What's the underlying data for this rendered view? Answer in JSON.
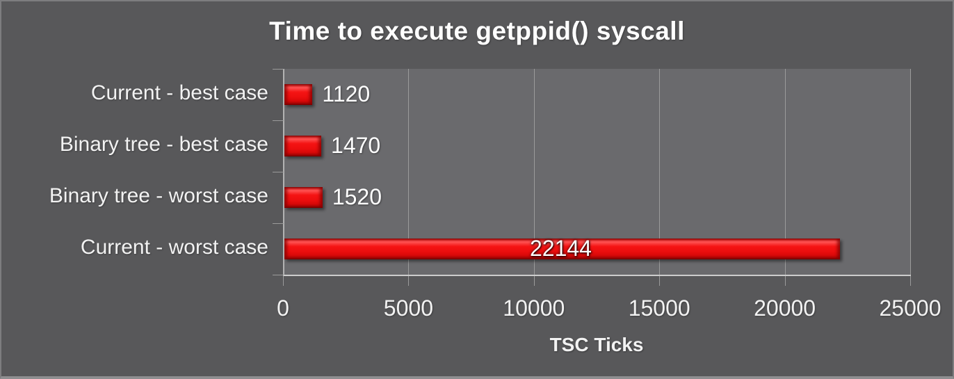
{
  "chart_data": {
    "type": "bar",
    "orientation": "horizontal",
    "title": "Time to execute getppid() syscall",
    "categories": [
      "Current - best case",
      "Binary tree - best case",
      "Binary tree - worst case",
      "Current - worst case"
    ],
    "values": [
      1120,
      1470,
      1520,
      22144
    ],
    "value_labels": [
      "1120",
      "1470",
      "1520",
      "22144"
    ],
    "xlabel": "TSC Ticks",
    "ylabel": "",
    "xlim": [
      0,
      25000
    ],
    "xticks": [
      0,
      5000,
      10000,
      15000,
      20000,
      25000
    ],
    "xtick_labels": [
      "0",
      "5000",
      "10000",
      "15000",
      "20000",
      "25000"
    ],
    "grid": true,
    "legend": false
  },
  "colors": {
    "background": "#58585a",
    "plot_background": "#6a6a6d",
    "gridline": "#9b9b9b",
    "axis_line": "#cdcdcd",
    "text": "#f2f2f2",
    "bar": "#ee1111"
  }
}
